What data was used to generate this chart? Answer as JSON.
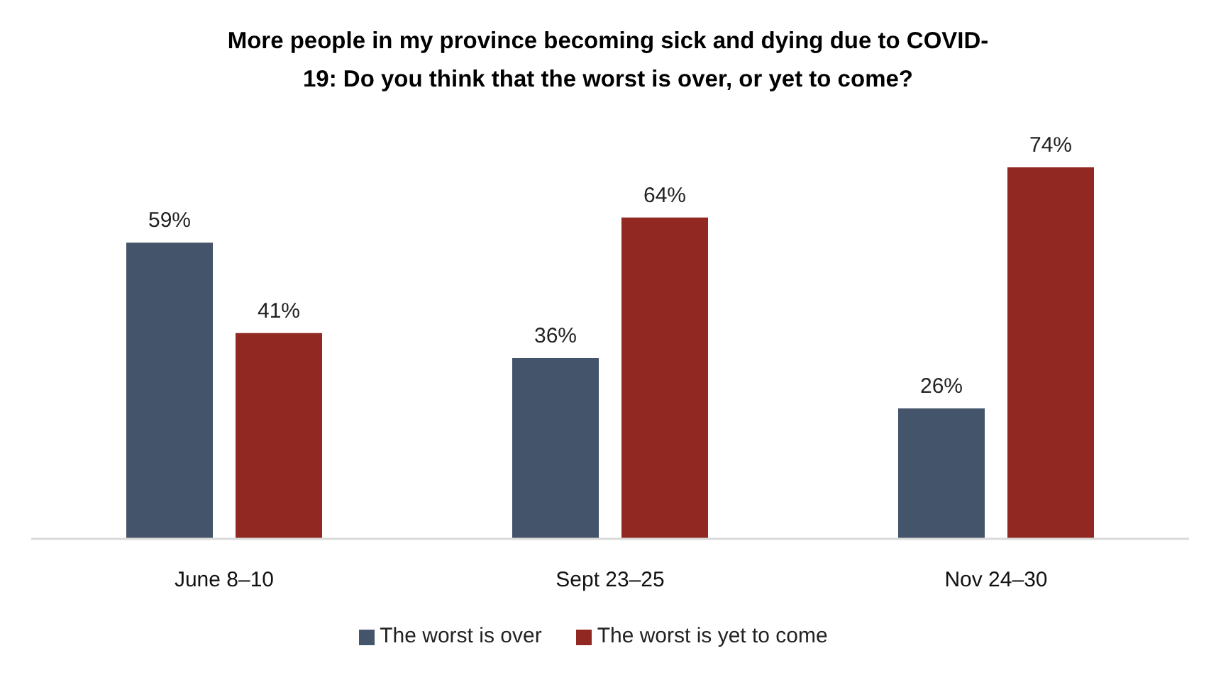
{
  "chart_data": {
    "type": "bar",
    "title": "More people in my province becoming sick and dying due to COVID-19: Do you think that the worst is over, or yet to come?",
    "categories": [
      "June 8–10",
      "Sept 23–25",
      "Nov 24–30"
    ],
    "series": [
      {
        "name": "The worst is over",
        "color": "#44546a",
        "values": [
          59,
          36,
          26
        ],
        "value_labels": [
          "59%",
          "36%",
          "26%"
        ]
      },
      {
        "name": "The worst is yet to come",
        "color": "#922822",
        "values": [
          41,
          64,
          74
        ],
        "value_labels": [
          "41%",
          "64%",
          "74%"
        ]
      }
    ],
    "legend": "bottom",
    "grid": false
  }
}
